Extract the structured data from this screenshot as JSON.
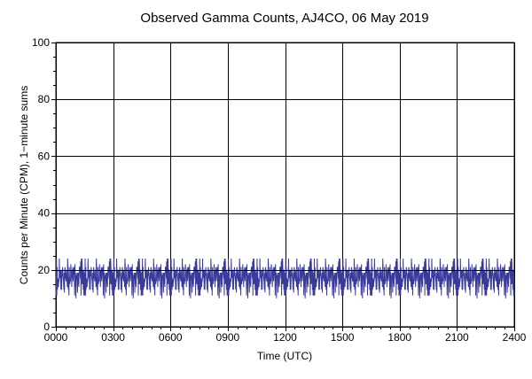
{
  "chart_data": {
    "type": "line",
    "title": "Observed Gamma Counts, AJ4CO, 06 May 2019",
    "xlabel": "Time (UTC)",
    "ylabel": "Counts per Minute (CPM), 1−minute sums",
    "xlim": [
      0,
      1440
    ],
    "ylim": [
      0,
      100
    ],
    "x_ticks": [
      0,
      180,
      360,
      540,
      720,
      900,
      1080,
      1260,
      1440
    ],
    "x_tick_labels": [
      "0000",
      "0300",
      "0600",
      "0900",
      "1200",
      "1500",
      "1800",
      "2100",
      "2400"
    ],
    "y_ticks": [
      0,
      20,
      40,
      60,
      80,
      100
    ],
    "y_tick_labels": [
      "0",
      "20",
      "40",
      "60",
      "80",
      "100"
    ],
    "grid": true,
    "reference_line": {
      "y": 20,
      "color": "#000000"
    },
    "series": [
      {
        "color": "#3a3a9a",
        "x_unit": "minutes since 0000 UTC",
        "x_step": 1,
        "approx_mean": 17,
        "approx_min": 4,
        "approx_max": 32,
        "values": [
          17,
          14,
          21,
          12,
          19,
          16,
          8,
          22,
          15,
          18,
          13,
          20,
          16,
          11,
          24,
          17,
          14,
          19,
          15,
          21,
          13,
          18,
          16,
          26,
          12,
          17,
          20,
          15,
          19,
          14,
          22,
          16,
          18,
          13,
          21,
          17,
          15,
          27,
          14,
          19,
          16,
          12,
          23,
          18,
          15,
          20,
          14,
          17,
          21,
          16,
          13,
          19,
          18,
          15,
          22,
          17,
          14,
          20,
          16,
          11,
          25,
          17,
          19,
          15,
          18,
          13,
          21,
          16,
          14,
          19,
          17,
          22,
          15,
          18,
          12,
          20,
          16,
          17,
          23,
          14,
          19,
          15,
          21,
          18,
          13,
          17,
          16,
          20,
          14,
          19
        ]
      }
    ]
  }
}
